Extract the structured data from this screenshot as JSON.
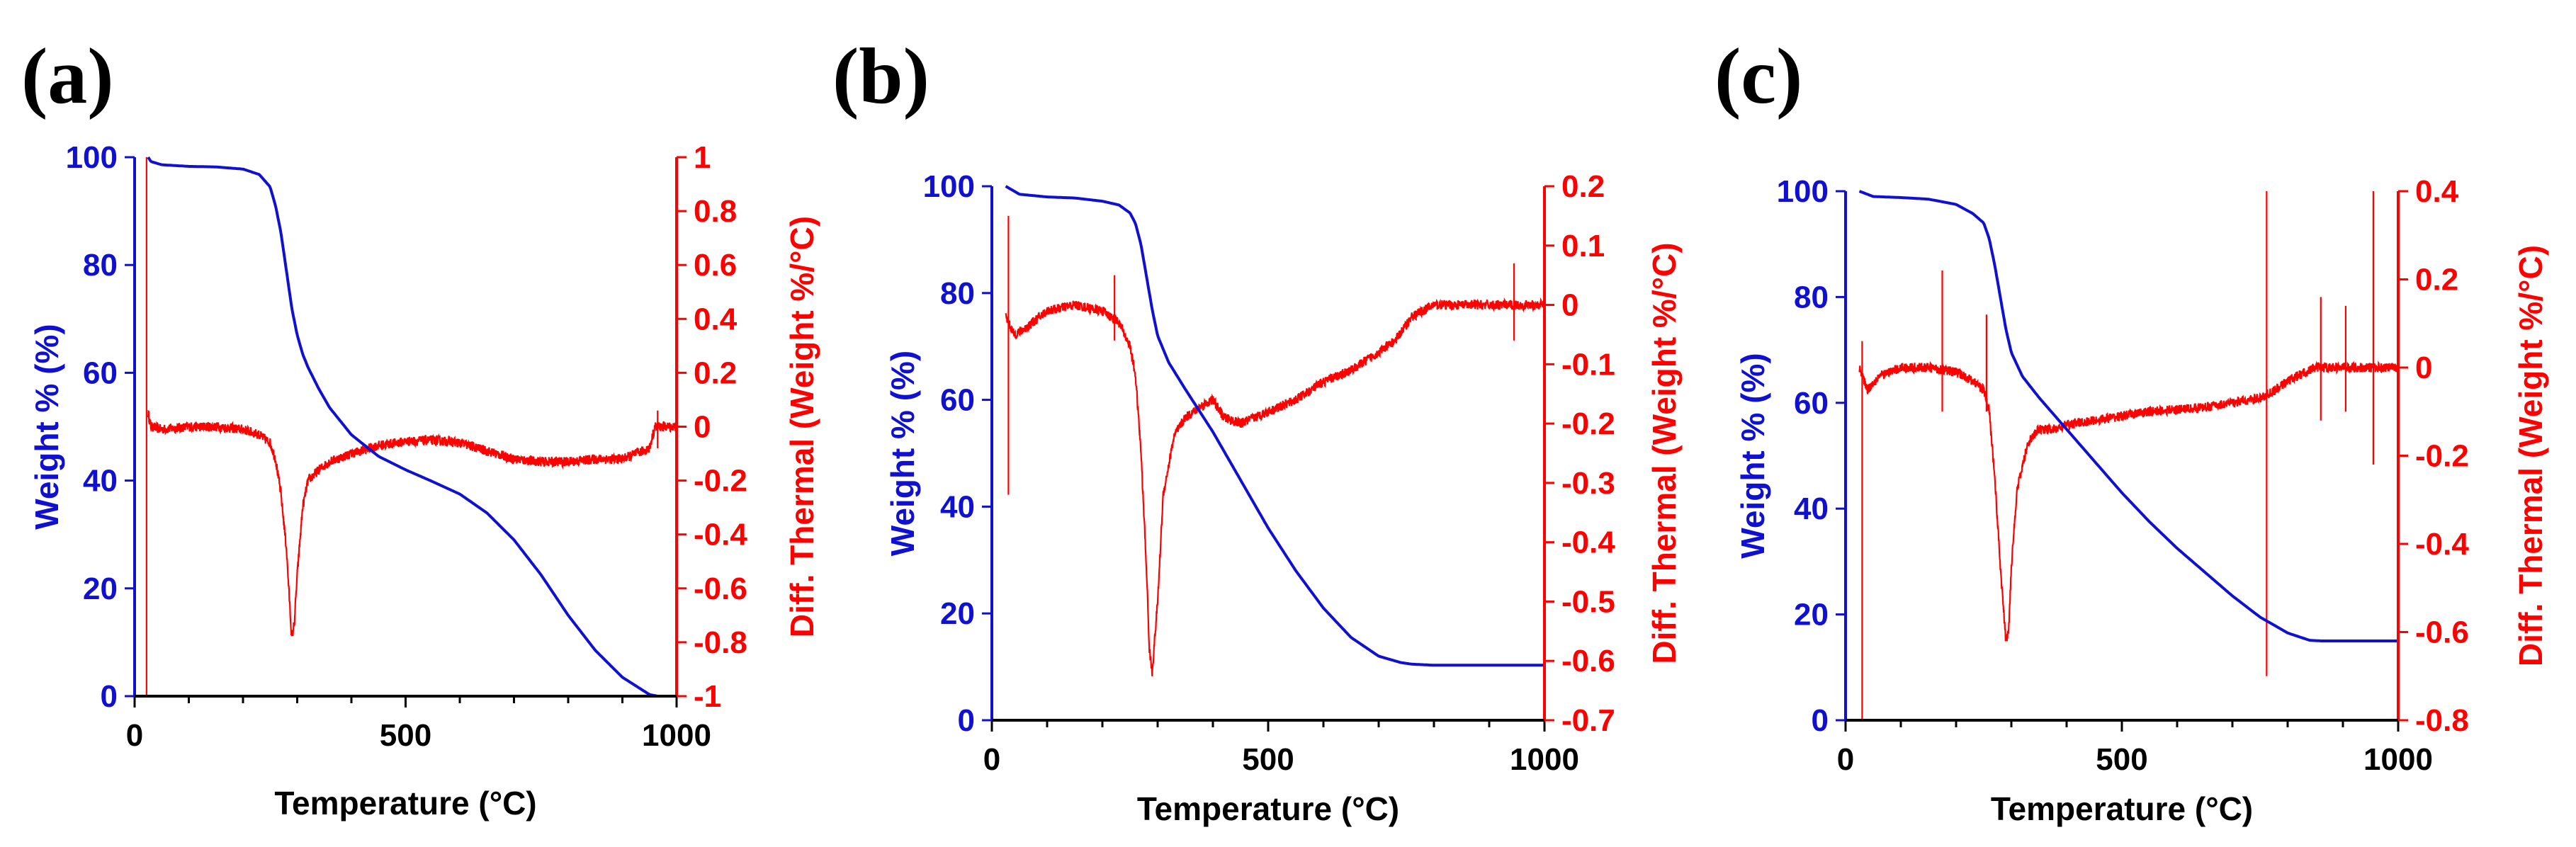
{
  "colors": {
    "weight": "#1010d0",
    "dtg": "#ff0000",
    "axis": "#000000"
  },
  "chart_data": [
    {
      "type": "line",
      "panel": "(a)",
      "xlabel": "Temperature (°C)",
      "ylabel_left": "Weight % (%)",
      "ylabel_right": "Diff. Thermal (Weight %/°C)",
      "xlim": [
        0,
        1000
      ],
      "xticks": [
        0,
        500,
        1000
      ],
      "ylim_left": [
        0,
        100
      ],
      "yticks_left": [
        0,
        20,
        40,
        60,
        80,
        100
      ],
      "ylim_right": [
        -1,
        1
      ],
      "yticks_right": [
        "1",
        "0.8",
        "0.6",
        "0.4",
        "0.2",
        "0",
        "-0.2",
        "-0.4",
        "-0.6",
        "-0.8",
        "-1"
      ],
      "series": [
        {
          "name": "Weight %",
          "axis": "left",
          "x": [
            25,
            30,
            50,
            100,
            150,
            200,
            230,
            250,
            260,
            270,
            280,
            290,
            300,
            310,
            320,
            340,
            360,
            400,
            450,
            500,
            550,
            600,
            650,
            700,
            750,
            800,
            850,
            900,
            950,
            965
          ],
          "y": [
            100,
            99.2,
            98.6,
            98.3,
            98.2,
            97.8,
            96.8,
            94.5,
            91,
            86,
            79,
            72,
            67,
            63.5,
            61,
            57,
            53.5,
            48.5,
            44.5,
            42,
            39.8,
            37.5,
            34,
            29,
            22.5,
            15,
            8.5,
            3.5,
            0.3,
            0
          ]
        },
        {
          "name": "Diff. Thermal",
          "axis": "right",
          "x": [
            25,
            30,
            50,
            100,
            150,
            200,
            230,
            250,
            260,
            270,
            280,
            285,
            290,
            295,
            300,
            310,
            320,
            340,
            360,
            400,
            450,
            500,
            550,
            600,
            650,
            700,
            750,
            800,
            850,
            900,
            950,
            960,
            1000
          ],
          "y": [
            0.05,
            0.0,
            -0.01,
            0.0,
            0.0,
            -0.01,
            -0.03,
            -0.06,
            -0.12,
            -0.25,
            -0.45,
            -0.62,
            -0.79,
            -0.72,
            -0.55,
            -0.3,
            -0.2,
            -0.16,
            -0.13,
            -0.1,
            -0.07,
            -0.055,
            -0.05,
            -0.06,
            -0.09,
            -0.12,
            -0.13,
            -0.13,
            -0.12,
            -0.12,
            -0.08,
            0.0,
            0.0
          ]
        }
      ],
      "spikes_right": [
        {
          "x": 22,
          "top": 1.0,
          "bottom": -1.0
        },
        {
          "x": 965,
          "top": 0.06,
          "bottom": -0.08
        }
      ]
    },
    {
      "type": "line",
      "panel": "(b)",
      "xlabel": "Temperature (°C)",
      "ylabel_left": "Weight % (%)",
      "ylabel_right": "Diff. Thermal (Weight %/°C)",
      "xlim": [
        0,
        1000
      ],
      "xticks": [
        0,
        500,
        1000
      ],
      "ylim_left": [
        0,
        100
      ],
      "yticks_left": [
        0,
        20,
        40,
        60,
        80,
        100
      ],
      "ylim_right": [
        -0.7,
        0.2
      ],
      "yticks_right": [
        "0.2",
        "0.1",
        "0",
        "-0.1",
        "-0.2",
        "-0.3",
        "-0.4",
        "-0.5",
        "-0.6",
        "-0.7"
      ],
      "series": [
        {
          "name": "Weight %",
          "axis": "left",
          "x": [
            25,
            50,
            100,
            150,
            200,
            230,
            250,
            260,
            270,
            280,
            290,
            300,
            320,
            350,
            400,
            450,
            500,
            550,
            600,
            650,
            700,
            740,
            760,
            800,
            900,
            1000
          ],
          "y": [
            100,
            98.5,
            98,
            97.8,
            97.2,
            96.5,
            95,
            93,
            89,
            83,
            77,
            72,
            67,
            62,
            54,
            45,
            36,
            28,
            21,
            15.5,
            12,
            10.8,
            10.5,
            10.3,
            10.3,
            10.3
          ]
        },
        {
          "name": "Diff. Thermal",
          "axis": "right",
          "x": [
            25,
            40,
            60,
            100,
            150,
            200,
            230,
            250,
            260,
            270,
            280,
            285,
            290,
            300,
            310,
            330,
            350,
            380,
            400,
            420,
            450,
            500,
            550,
            600,
            650,
            700,
            730,
            760,
            800,
            850,
            900,
            950,
            1000
          ],
          "y": [
            -0.02,
            -0.05,
            -0.04,
            -0.01,
            0.0,
            -0.01,
            -0.03,
            -0.07,
            -0.12,
            -0.25,
            -0.45,
            -0.58,
            -0.62,
            -0.5,
            -0.32,
            -0.22,
            -0.19,
            -0.17,
            -0.16,
            -0.19,
            -0.2,
            -0.18,
            -0.16,
            -0.13,
            -0.11,
            -0.08,
            -0.06,
            -0.02,
            0.0,
            0.0,
            0.0,
            0.0,
            0.0
          ]
        }
      ],
      "spikes_right": [
        {
          "x": 30,
          "top": 0.15,
          "bottom": -0.32
        },
        {
          "x": 222,
          "top": 0.05,
          "bottom": -0.06
        },
        {
          "x": 945,
          "top": 0.07,
          "bottom": -0.06
        }
      ]
    },
    {
      "type": "line",
      "panel": "(c)",
      "xlabel": "Temperature (°C)",
      "ylabel_left": "Weight % (%)",
      "ylabel_right": "Diff. Thermal (Weight %/°C)",
      "xlim": [
        0,
        1000
      ],
      "xticks": [
        0,
        500,
        1000
      ],
      "ylim_left": [
        0,
        100
      ],
      "yticks_left": [
        0,
        20,
        40,
        60,
        80,
        100
      ],
      "ylim_right": [
        -0.8,
        0.4
      ],
      "yticks_right": [
        "0.4",
        "0.2",
        "0",
        "-0.2",
        "-0.4",
        "-0.6",
        "-0.8"
      ],
      "series": [
        {
          "name": "Weight %",
          "axis": "left",
          "x": [
            25,
            50,
            100,
            150,
            200,
            230,
            250,
            260,
            270,
            280,
            290,
            300,
            320,
            350,
            400,
            450,
            500,
            550,
            600,
            650,
            700,
            750,
            800,
            840,
            860,
            900,
            1000
          ],
          "y": [
            100,
            99,
            98.8,
            98.5,
            97.5,
            95.8,
            94,
            91,
            86,
            80,
            74,
            69.5,
            65,
            61,
            55,
            49,
            43,
            37.5,
            32.5,
            28,
            23.5,
            19.5,
            16.5,
            15.1,
            15,
            15,
            15
          ]
        },
        {
          "name": "Diff. Thermal",
          "axis": "right",
          "x": [
            25,
            40,
            60,
            100,
            150,
            200,
            230,
            250,
            260,
            270,
            280,
            290,
            295,
            300,
            310,
            330,
            350,
            380,
            400,
            450,
            500,
            550,
            600,
            650,
            700,
            750,
            780,
            800,
            850,
            900,
            950,
            1000
          ],
          "y": [
            0.0,
            -0.05,
            -0.02,
            0.0,
            0.0,
            -0.01,
            -0.03,
            -0.05,
            -0.1,
            -0.25,
            -0.45,
            -0.62,
            -0.6,
            -0.45,
            -0.28,
            -0.17,
            -0.14,
            -0.14,
            -0.13,
            -0.12,
            -0.11,
            -0.1,
            -0.095,
            -0.09,
            -0.08,
            -0.07,
            -0.05,
            -0.03,
            0.0,
            0.0,
            0.0,
            0.0
          ]
        }
      ],
      "spikes_right": [
        {
          "x": 30,
          "top": 0.06,
          "bottom": -0.8
        },
        {
          "x": 175,
          "top": 0.22,
          "bottom": -0.1
        },
        {
          "x": 255,
          "top": 0.12,
          "bottom": -0.1
        },
        {
          "x": 762,
          "top": 0.4,
          "bottom": -0.7
        },
        {
          "x": 860,
          "top": 0.16,
          "bottom": -0.12
        },
        {
          "x": 905,
          "top": 0.14,
          "bottom": -0.1
        },
        {
          "x": 955,
          "top": 0.4,
          "bottom": -0.22
        }
      ]
    }
  ]
}
